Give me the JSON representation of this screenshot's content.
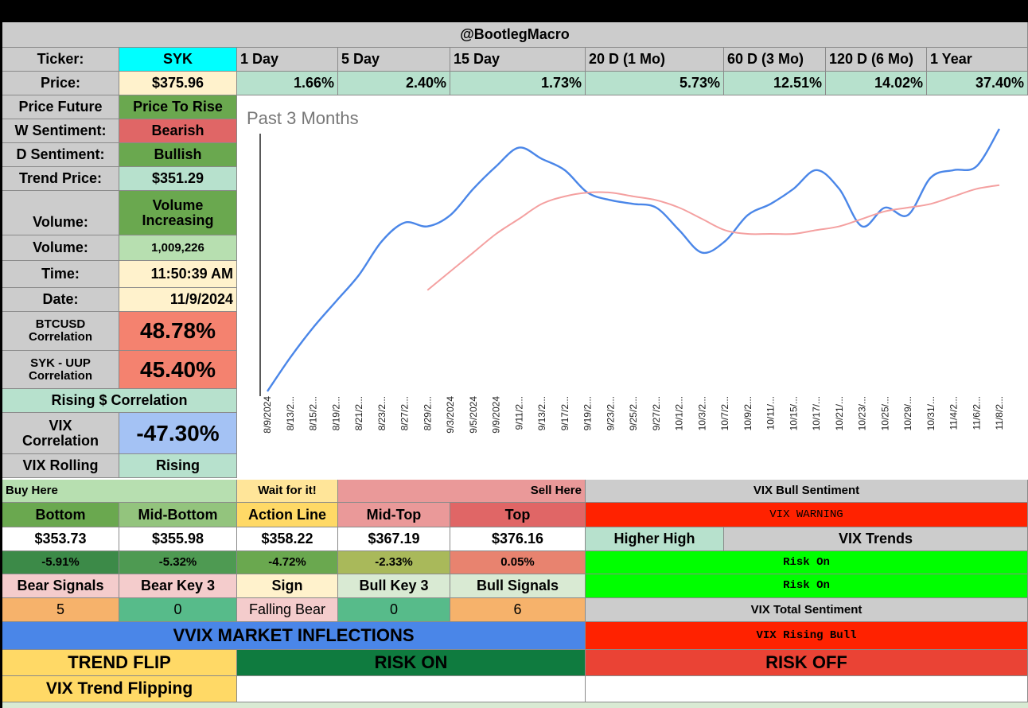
{
  "header": {
    "title": "@BootlegMacro"
  },
  "ticker": {
    "label": "Ticker:",
    "value": "SYK"
  },
  "periods": [
    "1 Day",
    "5 Day",
    "15 Day",
    "20 D (1 Mo)",
    "60 D (3 Mo)",
    "120 D (6 Mo)",
    "1 Year"
  ],
  "price": {
    "label": "Price:",
    "value": "$375.96"
  },
  "returns": [
    "1.66%",
    "2.40%",
    "1.73%",
    "5.73%",
    "12.51%",
    "14.02%",
    "37.40%"
  ],
  "stats": {
    "price_future_label": "Price Future",
    "price_future_value": "Price To Rise",
    "w_sentiment_label": "W Sentiment:",
    "w_sentiment_value": "Bearish",
    "d_sentiment_label": "D Sentiment:",
    "d_sentiment_value": "Bullish",
    "trend_price_label": "Trend Price:",
    "trend_price_value": "$351.29",
    "volume_label": "Volume:",
    "volume_value": "Volume Increasing",
    "volume2_label": "Volume:",
    "volume2_value": "1,009,226",
    "time_label": "Time:",
    "time_value": "11:50:39 AM",
    "date_label": "Date:",
    "date_value": "11/9/2024",
    "btc_label": "BTCUSD Correlation",
    "btc_value": "48.78%",
    "uup_label": "SYK - UUP Correlation",
    "uup_value": "45.40%",
    "rising_label": "Rising $ Correlation",
    "vix_corr_label": "VIX Correlation",
    "vix_corr_value": "-47.30%",
    "vix_rolling_label": "VIX Rolling",
    "vix_rolling_value": "Rising"
  },
  "chart_data": {
    "type": "line",
    "title": "Past 3 Months",
    "x": [
      "8/9/2024",
      "8/13/2...",
      "8/15/2...",
      "8/19/2...",
      "8/21/2...",
      "8/23/2...",
      "8/27/2...",
      "8/29/2...",
      "9/3/2024",
      "9/5/2024",
      "9/9/2024",
      "9/11/2...",
      "9/13/2...",
      "9/17/2...",
      "9/19/2...",
      "9/23/2...",
      "9/25/2...",
      "9/27/2...",
      "10/1/2...",
      "10/3/2...",
      "10/7/2...",
      "10/9/2...",
      "10/11/...",
      "10/15/...",
      "10/17/...",
      "10/21/...",
      "10/23/...",
      "10/25/...",
      "10/29/...",
      "10/31/...",
      "11/4/2...",
      "11/6/2...",
      "11/8/2..."
    ],
    "series": [
      {
        "color": "#4a86e8",
        "values": [
          305,
          314,
          322,
          329,
          336,
          345,
          350,
          349,
          352,
          359,
          365,
          370,
          367,
          364,
          358,
          356,
          355,
          354,
          348,
          342,
          345,
          352,
          355,
          359,
          364,
          359,
          349,
          354,
          352,
          362,
          364,
          365,
          375
        ]
      },
      {
        "color": "#f4a0a0",
        "values": [
          null,
          null,
          null,
          null,
          null,
          null,
          null,
          332,
          337,
          342,
          347,
          351,
          355,
          357,
          358,
          358,
          357,
          356,
          354,
          351,
          348,
          347,
          347,
          347,
          348,
          349,
          351,
          353,
          354,
          355,
          357,
          359,
          360
        ]
      }
    ],
    "grid": false
  },
  "levels": {
    "buy_here": "Buy Here",
    "wait": "Wait for it!",
    "sell_here": "Sell Here",
    "headers": [
      "Bottom",
      "Mid-Bottom",
      "Action Line",
      "Mid-Top",
      "Top"
    ],
    "prices": [
      "$353.73",
      "$355.98",
      "$358.22",
      "$367.19",
      "$376.16"
    ],
    "pcts": [
      "-5.91%",
      "-5.32%",
      "-4.72%",
      "-2.33%",
      "0.05%"
    ]
  },
  "signals": {
    "headers": [
      "Bear Signals",
      "Bear Key 3",
      "Sign",
      "Bull Key 3",
      "Bull Signals"
    ],
    "values": [
      "5",
      "0",
      "Falling Bear",
      "0",
      "6"
    ]
  },
  "vix": {
    "bull_sentiment": "VIX Bull Sentiment",
    "warning": "VIX WARNING",
    "higher_high": "Higher High",
    "trends": "VIX Trends",
    "risk_on_1": "Risk On",
    "risk_on_2": "Risk On",
    "total_sentiment": "VIX Total Sentiment",
    "rising_bull": "VIX Rising Bull"
  },
  "vvix": {
    "title": "VVIX MARKET INFLECTIONS",
    "trend_flip": "TREND FLIP",
    "risk_on": "RISK ON",
    "risk_off": "RISK OFF",
    "trend_flipping": "VIX Trend Flipping"
  },
  "colors": {
    "grey": "#cccccc",
    "cyan": "#00ffff",
    "cream": "#fff2cc",
    "mint": "#b7e1cd",
    "green": "#6aa84f",
    "red": "#e06666",
    "salmon": "#f4826f",
    "bluegrey": "#a4c2f4",
    "lime": "#00ff00",
    "bright_red": "#ff2200",
    "vvix_blue": "#4a86e8",
    "yellow": "#ffd966",
    "dark_green": "#0f7b3f",
    "risk_red": "#ea4335"
  }
}
